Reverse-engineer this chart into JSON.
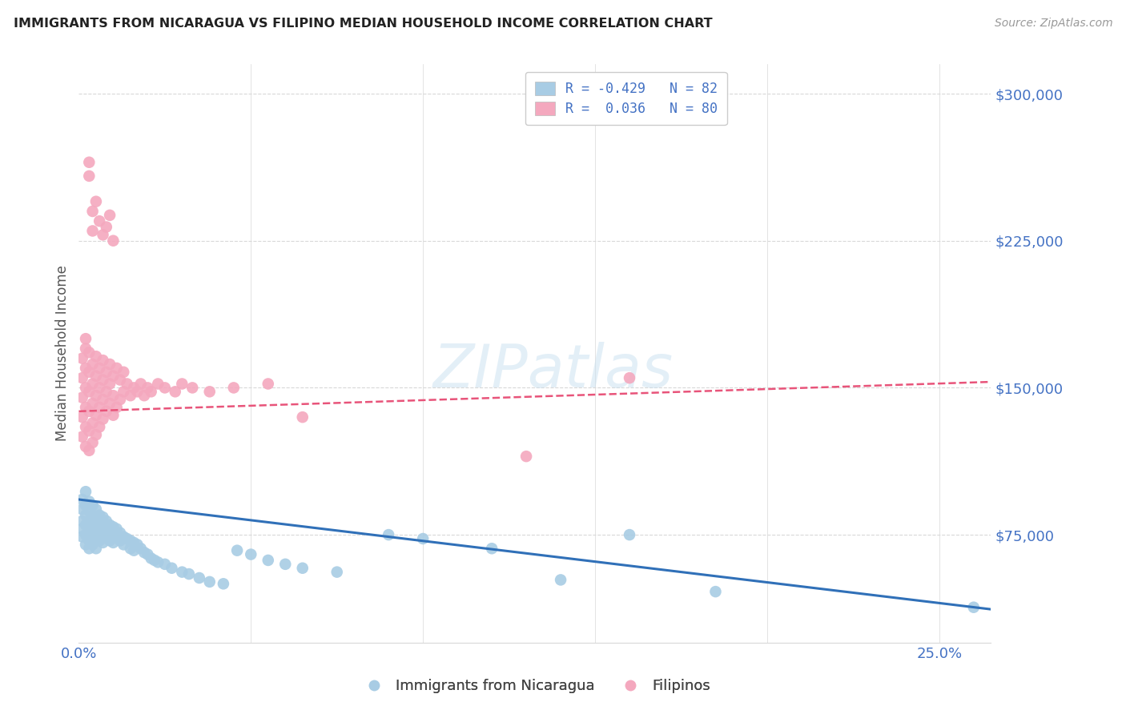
{
  "title": "IMMIGRANTS FROM NICARAGUA VS FILIPINO MEDIAN HOUSEHOLD INCOME CORRELATION CHART",
  "source": "Source: ZipAtlas.com",
  "ylabel": "Median Household Income",
  "ytick_labels": [
    "$75,000",
    "$150,000",
    "$225,000",
    "$300,000"
  ],
  "ytick_values": [
    75000,
    150000,
    225000,
    300000
  ],
  "y_min": 20000,
  "y_max": 315000,
  "x_min": 0.0,
  "x_max": 0.265,
  "legend_blue_label": "R = -0.429   N = 82",
  "legend_pink_label": "R =  0.036   N = 80",
  "legend_bottom_blue": "Immigrants from Nicaragua",
  "legend_bottom_pink": "Filipinos",
  "blue_color": "#a8cce4",
  "pink_color": "#f4a8be",
  "blue_line_color": "#3070b8",
  "pink_line_color": "#e8547a",
  "watermark": "ZIPatlas",
  "background_color": "#ffffff",
  "grid_color": "#d8d8d8",
  "title_color": "#222222",
  "axis_label_color": "#4472c4",
  "blue_scatter_x": [
    0.001,
    0.001,
    0.001,
    0.001,
    0.001,
    0.002,
    0.002,
    0.002,
    0.002,
    0.002,
    0.002,
    0.003,
    0.003,
    0.003,
    0.003,
    0.003,
    0.003,
    0.004,
    0.004,
    0.004,
    0.004,
    0.004,
    0.005,
    0.005,
    0.005,
    0.005,
    0.005,
    0.006,
    0.006,
    0.006,
    0.006,
    0.007,
    0.007,
    0.007,
    0.007,
    0.008,
    0.008,
    0.008,
    0.009,
    0.009,
    0.009,
    0.01,
    0.01,
    0.01,
    0.011,
    0.011,
    0.012,
    0.012,
    0.013,
    0.013,
    0.014,
    0.015,
    0.015,
    0.016,
    0.016,
    0.017,
    0.018,
    0.019,
    0.02,
    0.021,
    0.022,
    0.023,
    0.025,
    0.027,
    0.03,
    0.032,
    0.035,
    0.038,
    0.042,
    0.046,
    0.05,
    0.055,
    0.06,
    0.065,
    0.075,
    0.09,
    0.1,
    0.12,
    0.14,
    0.16,
    0.185,
    0.26
  ],
  "blue_scatter_y": [
    93000,
    88000,
    82000,
    78000,
    74000,
    97000,
    90000,
    85000,
    80000,
    75000,
    70000,
    92000,
    87000,
    82000,
    77000,
    72000,
    68000,
    90000,
    85000,
    80000,
    75000,
    70000,
    88000,
    83000,
    78000,
    73000,
    68000,
    85000,
    80000,
    76000,
    72000,
    84000,
    79000,
    75000,
    71000,
    82000,
    78000,
    74000,
    80000,
    76000,
    72000,
    79000,
    75000,
    71000,
    78000,
    74000,
    76000,
    72000,
    74000,
    70000,
    73000,
    72000,
    68000,
    71000,
    67000,
    70000,
    68000,
    66000,
    65000,
    63000,
    62000,
    61000,
    60000,
    58000,
    56000,
    55000,
    53000,
    51000,
    50000,
    67000,
    65000,
    62000,
    60000,
    58000,
    56000,
    75000,
    73000,
    68000,
    52000,
    75000,
    46000,
    38000
  ],
  "pink_scatter_x": [
    0.001,
    0.001,
    0.001,
    0.001,
    0.001,
    0.002,
    0.002,
    0.002,
    0.002,
    0.002,
    0.002,
    0.002,
    0.003,
    0.003,
    0.003,
    0.003,
    0.003,
    0.003,
    0.004,
    0.004,
    0.004,
    0.004,
    0.004,
    0.005,
    0.005,
    0.005,
    0.005,
    0.005,
    0.006,
    0.006,
    0.006,
    0.006,
    0.007,
    0.007,
    0.007,
    0.007,
    0.008,
    0.008,
    0.008,
    0.009,
    0.009,
    0.009,
    0.01,
    0.01,
    0.01,
    0.011,
    0.011,
    0.012,
    0.012,
    0.013,
    0.013,
    0.014,
    0.015,
    0.016,
    0.017,
    0.018,
    0.019,
    0.02,
    0.021,
    0.023,
    0.025,
    0.028,
    0.03,
    0.033,
    0.038,
    0.045,
    0.055,
    0.065,
    0.13,
    0.16,
    0.003,
    0.003,
    0.004,
    0.004,
    0.005,
    0.006,
    0.007,
    0.008,
    0.009,
    0.01
  ],
  "pink_scatter_y": [
    135000,
    145000,
    155000,
    165000,
    125000,
    130000,
    140000,
    150000,
    160000,
    170000,
    120000,
    175000,
    128000,
    138000,
    148000,
    158000,
    168000,
    118000,
    132000,
    142000,
    152000,
    162000,
    122000,
    136000,
    146000,
    156000,
    166000,
    126000,
    140000,
    150000,
    160000,
    130000,
    144000,
    154000,
    164000,
    134000,
    148000,
    158000,
    138000,
    152000,
    162000,
    142000,
    156000,
    146000,
    136000,
    160000,
    140000,
    154000,
    144000,
    158000,
    148000,
    152000,
    146000,
    150000,
    148000,
    152000,
    146000,
    150000,
    148000,
    152000,
    150000,
    148000,
    152000,
    150000,
    148000,
    150000,
    152000,
    135000,
    115000,
    155000,
    258000,
    265000,
    240000,
    230000,
    245000,
    235000,
    228000,
    232000,
    238000,
    225000
  ],
  "blue_trend_x": [
    0.0,
    0.265
  ],
  "blue_trend_y": [
    93000,
    37000
  ],
  "pink_trend_x": [
    0.0,
    0.265
  ],
  "pink_trend_y": [
    138000,
    153000
  ]
}
